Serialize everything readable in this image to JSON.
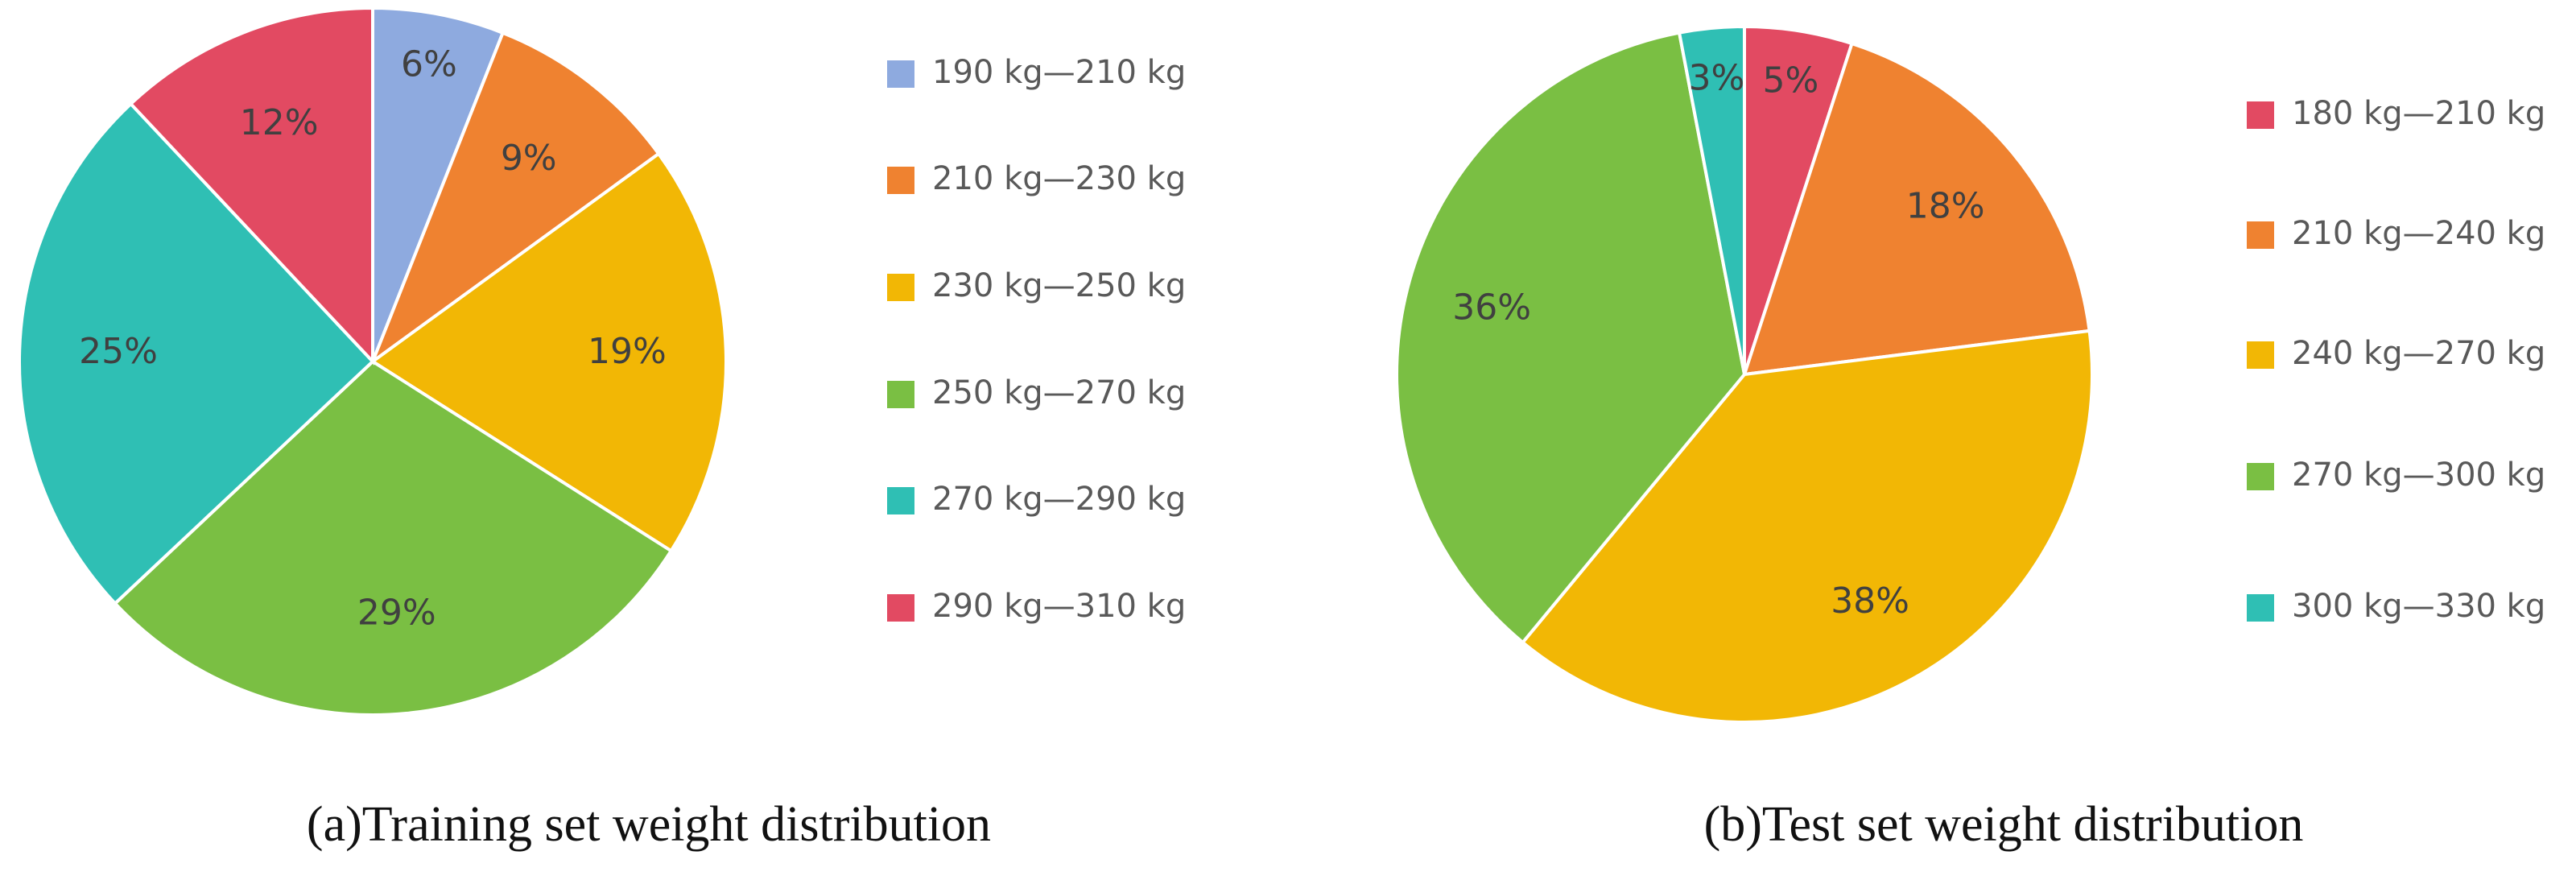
{
  "chart_data": [
    {
      "type": "pie",
      "title": "(a)Training set weight distribution",
      "categories": [
        "190 kg—210 kg",
        "210 kg—230 kg",
        "230 kg—250 kg",
        "250 kg—270 kg",
        "270 kg—290 kg",
        "290 kg—310 kg"
      ],
      "values": [
        6,
        9,
        19,
        29,
        25,
        12
      ],
      "value_labels": [
        "6%",
        "9%",
        "19%",
        "29%",
        "25%",
        "12%"
      ],
      "colors": [
        "#8eaadf",
        "#ef8230",
        "#f2b705",
        "#7abf43",
        "#2fbfb4",
        "#e24a62"
      ]
    },
    {
      "type": "pie",
      "title": "(b)Test set weight distribution",
      "categories": [
        "180 kg—210 kg",
        "210 kg—240 kg",
        "240 kg—270 kg",
        "270 kg—300 kg",
        "300 kg—330 kg"
      ],
      "values": [
        5,
        18,
        38,
        36,
        3
      ],
      "value_labels": [
        "5%",
        "18%",
        "38%",
        "36%",
        "3%"
      ],
      "colors": [
        "#e24a62",
        "#ef8230",
        "#f2b705",
        "#7abf43",
        "#2fbfb4"
      ]
    }
  ]
}
